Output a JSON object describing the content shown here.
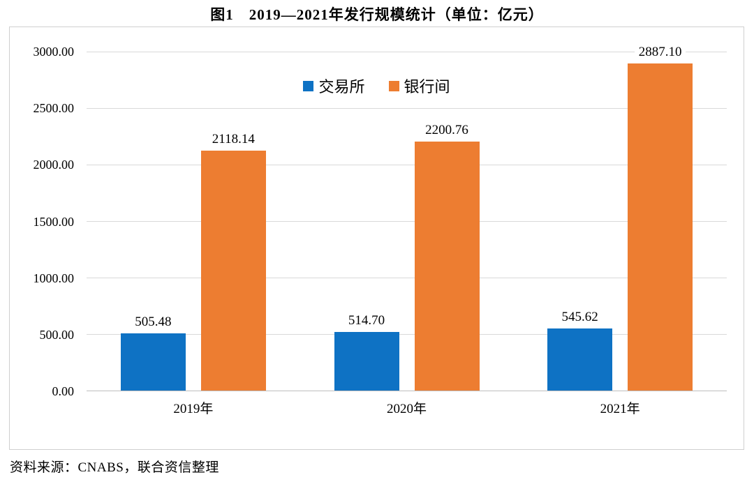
{
  "title": "图1　2019—2021年发行规模统计（单位：亿元）",
  "source": "资料来源：CNABS，联合资信整理",
  "chart_data": {
    "type": "bar",
    "title": "图1　2019—2021年发行规模统计（单位：亿元）",
    "categories": [
      "2019年",
      "2020年",
      "2021年"
    ],
    "series": [
      {
        "id": "exchange",
        "name": "交易所",
        "color": "#0E72C4",
        "values": [
          505.48,
          514.7,
          545.62
        ],
        "labels": [
          "505.48",
          "514.70",
          "545.62"
        ]
      },
      {
        "id": "interbank",
        "name": "银行间",
        "color": "#ED7D31",
        "values": [
          2118.14,
          2200.76,
          2887.1
        ],
        "labels": [
          "2118.14",
          "2200.76",
          "2887.10"
        ]
      }
    ],
    "xlabel": "",
    "ylabel": "",
    "ylim": [
      0,
      3000
    ],
    "y_tick_step": 500,
    "y_ticks": [
      "0.00",
      "500.00",
      "1000.00",
      "1500.00",
      "2000.00",
      "2500.00",
      "3000.00"
    ],
    "grid": true,
    "legend_position": "top-center",
    "unit": "亿元"
  },
  "colors": {
    "exchange_bar": "#0E72C4",
    "interbank_bar": "#ED7D31",
    "gridline": "#d9d9d9",
    "axis_line": "#bdbdbd",
    "frame_border": "#cfcfcf",
    "text": "#000000"
  }
}
